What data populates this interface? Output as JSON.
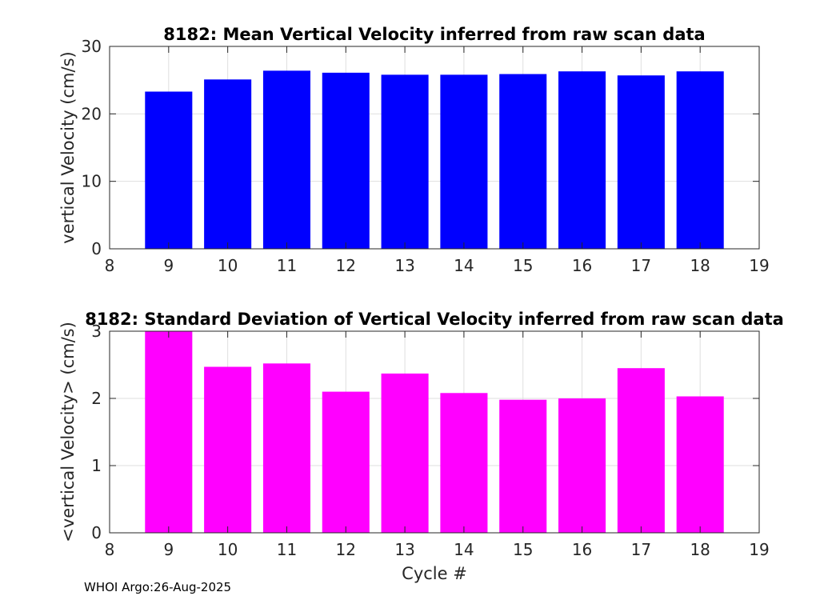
{
  "chart_data": [
    {
      "type": "bar",
      "title": "8182: Mean Vertical Velocity inferred from raw scan data",
      "xlabel": "",
      "ylabel": "vertical Velocity (cm/s)",
      "x": [
        9,
        10,
        11,
        12,
        13,
        14,
        15,
        16,
        17,
        18
      ],
      "values": [
        23.3,
        25.1,
        26.4,
        26.1,
        25.8,
        25.8,
        25.9,
        26.3,
        25.7,
        26.3
      ],
      "xlim": [
        8,
        19
      ],
      "ylim": [
        0,
        30
      ],
      "xticks": [
        "8",
        "9",
        "10",
        "11",
        "12",
        "13",
        "14",
        "15",
        "16",
        "17",
        "18",
        "19"
      ],
      "yticks": [
        "0",
        "10",
        "20",
        "30"
      ],
      "xtick_values": [
        8,
        9,
        10,
        11,
        12,
        13,
        14,
        15,
        16,
        17,
        18,
        19
      ],
      "ytick_values": [
        0,
        10,
        20,
        30
      ],
      "grid": true,
      "color": "#0000ff"
    },
    {
      "type": "bar",
      "title": "8182: Standard Deviation of Vertical Velocity inferred from raw scan data",
      "xlabel": "Cycle #",
      "ylabel": "<vertical Velocity> (cm/s)",
      "x": [
        9,
        10,
        11,
        12,
        13,
        14,
        15,
        16,
        17,
        18
      ],
      "values": [
        3.0,
        2.47,
        2.52,
        2.1,
        2.37,
        2.08,
        1.98,
        2.0,
        2.45,
        2.03
      ],
      "xlim": [
        8,
        19
      ],
      "ylim": [
        0,
        3
      ],
      "xticks": [
        "8",
        "9",
        "10",
        "11",
        "12",
        "13",
        "14",
        "15",
        "16",
        "17",
        "18",
        "19"
      ],
      "yticks": [
        "0",
        "1",
        "2",
        "3"
      ],
      "xtick_values": [
        8,
        9,
        10,
        11,
        12,
        13,
        14,
        15,
        16,
        17,
        18,
        19
      ],
      "ytick_values": [
        0,
        1,
        2,
        3
      ],
      "grid": true,
      "color": "#ff00ff"
    }
  ],
  "footer": {
    "text": "WHOI Argo:26-Aug-2025"
  }
}
